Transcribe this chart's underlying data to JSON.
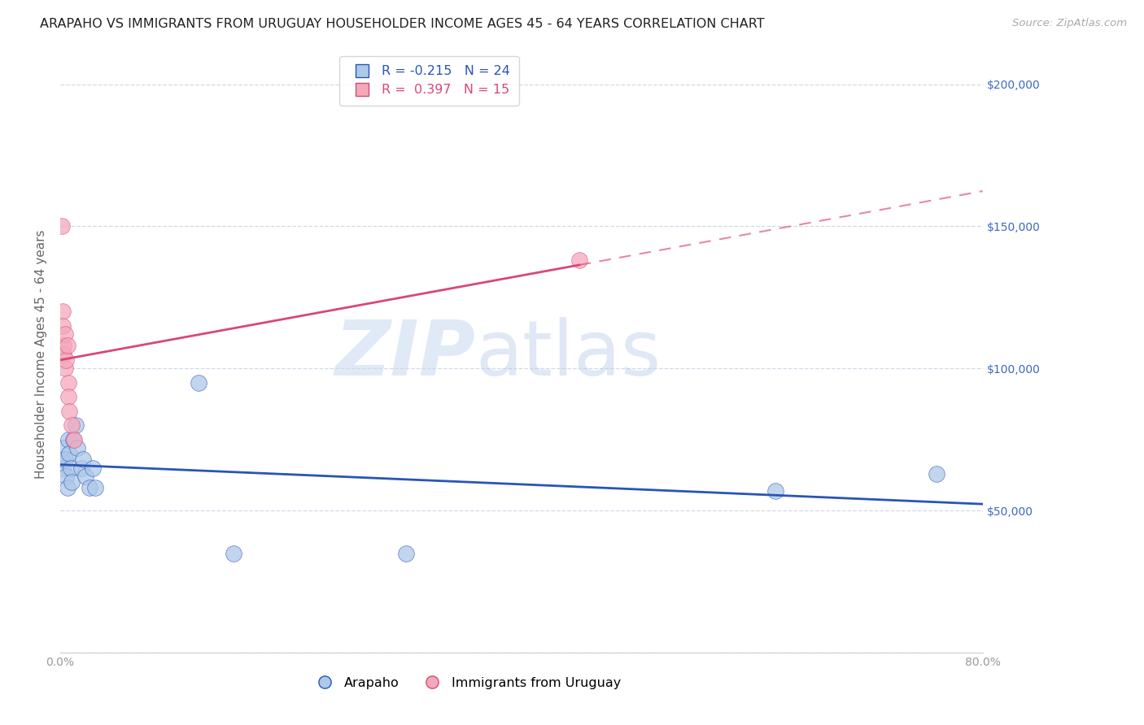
{
  "title": "ARAPAHO VS IMMIGRANTS FROM URUGUAY HOUSEHOLDER INCOME AGES 45 - 64 YEARS CORRELATION CHART",
  "source": "Source: ZipAtlas.com",
  "ylabel": "Householder Income Ages 45 - 64 years",
  "label1": "Arapaho",
  "label2": "Immigrants from Uruguay",
  "R1": -0.215,
  "N1": 24,
  "R2": 0.397,
  "N2": 15,
  "color1": "#adc8e8",
  "color2": "#f4a8bc",
  "line_color1": "#2855b8",
  "line_color2": "#d84878",
  "right_tick_color": "#3a6abf",
  "arapaho_x": [
    0.001,
    0.002,
    0.003,
    0.004,
    0.005,
    0.006,
    0.007,
    0.008,
    0.009,
    0.01,
    0.011,
    0.013,
    0.015,
    0.018,
    0.02,
    0.022,
    0.025,
    0.028,
    0.03,
    0.12,
    0.15,
    0.3,
    0.62,
    0.76
  ],
  "arapaho_y": [
    68000,
    65000,
    72000,
    68000,
    62000,
    58000,
    75000,
    70000,
    65000,
    60000,
    75000,
    80000,
    72000,
    65000,
    68000,
    62000,
    58000,
    65000,
    58000,
    95000,
    35000,
    35000,
    57000,
    63000
  ],
  "uruguay_x": [
    0.001,
    0.002,
    0.002,
    0.003,
    0.003,
    0.004,
    0.004,
    0.005,
    0.006,
    0.007,
    0.007,
    0.008,
    0.01,
    0.012,
    0.45
  ],
  "uruguay_y": [
    150000,
    120000,
    115000,
    108000,
    105000,
    112000,
    100000,
    103000,
    108000,
    95000,
    90000,
    85000,
    80000,
    75000,
    138000
  ],
  "xlim": [
    0.0,
    0.8
  ],
  "ylim": [
    0,
    210000
  ],
  "yticks": [
    0,
    50000,
    100000,
    150000,
    200000
  ],
  "xticks": [
    0.0,
    0.1,
    0.2,
    0.3,
    0.4,
    0.5,
    0.6,
    0.7,
    0.8
  ],
  "xtick_labels": [
    "0.0%",
    "",
    "",
    "",
    "",
    "",
    "",
    "",
    "80.0%"
  ],
  "right_ytick_labels": [
    "$50,000",
    "$100,000",
    "$150,000",
    "$200,000"
  ],
  "watermark_zip": "ZIP",
  "watermark_atlas": "atlas",
  "bg_color": "#ffffff",
  "title_color": "#222222",
  "tick_color": "#999999",
  "grid_color": "#d0d8e8",
  "title_fontsize": 11.5,
  "ylabel_fontsize": 11,
  "tick_fontsize": 10,
  "source_fontsize": 9.5,
  "legend_fontsize": 11.5
}
